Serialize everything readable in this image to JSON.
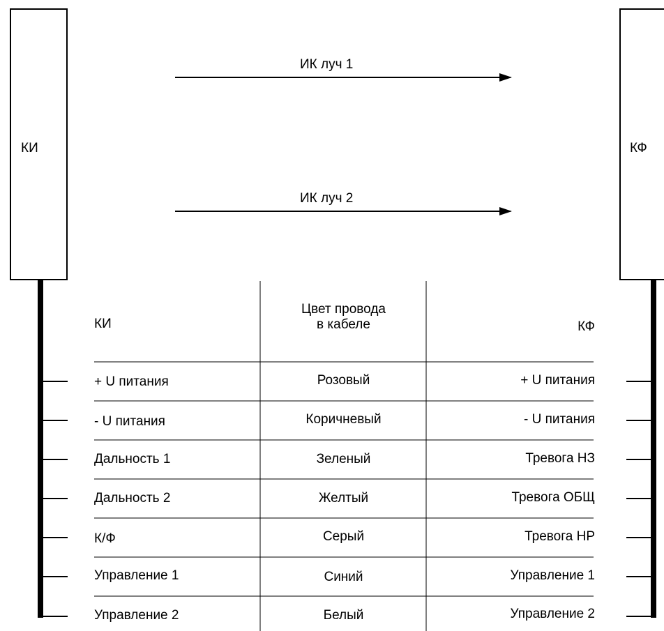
{
  "units": {
    "left": "КИ",
    "right": "КФ"
  },
  "beams": [
    "ИК луч 1",
    "ИК луч 2"
  ],
  "table": {
    "headers": {
      "left": "КИ",
      "middle_line1": "Цвет провода",
      "middle_line2": "в кабеле",
      "right": "КФ"
    },
    "rows": [
      {
        "left": "+ U питания",
        "middle": "Розовый",
        "right": "+ U питания"
      },
      {
        "left": "- U питания",
        "middle": "Коричневый",
        "right": "- U питания"
      },
      {
        "left": "Дальность 1",
        "middle": "Зеленый",
        "right": "Тревога НЗ"
      },
      {
        "left": "Дальность 2",
        "middle": "Желтый",
        "right": "Тревога ОБЩ"
      },
      {
        "left": "К/Ф",
        "middle": "Серый",
        "right": "Тревога НР"
      },
      {
        "left": "Управление 1",
        "middle": "Синий",
        "right": "Управление 1"
      },
      {
        "left": "Управление 2",
        "middle": "Белый",
        "right": "Управление 2"
      }
    ]
  }
}
